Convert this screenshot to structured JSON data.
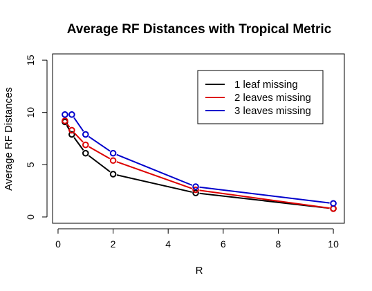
{
  "chart_data": {
    "type": "line",
    "title": "Average RF Distances with Tropical Metric",
    "xlabel": "R",
    "ylabel": "Average RF Distances",
    "x": [
      0.25,
      0.5,
      1,
      2,
      5,
      10
    ],
    "xlim": [
      -0.2,
      10.4
    ],
    "ylim": [
      -0.6,
      15.6
    ],
    "xticks": [
      0,
      2,
      4,
      6,
      8,
      10
    ],
    "yticks": [
      0,
      5,
      10,
      15
    ],
    "grid": false,
    "legend_position": "top-right",
    "series": [
      {
        "name": "1 leaf missing",
        "color": "#000000",
        "values": [
          9.1,
          7.9,
          6.1,
          4.1,
          2.3,
          0.8
        ]
      },
      {
        "name": "2 leaves missing",
        "color": "#dd0000",
        "values": [
          9.2,
          8.3,
          6.9,
          5.4,
          2.6,
          0.8
        ]
      },
      {
        "name": "3 leaves missing",
        "color": "#0000cc",
        "values": [
          9.8,
          9.8,
          7.9,
          6.1,
          2.9,
          1.3
        ]
      }
    ]
  }
}
